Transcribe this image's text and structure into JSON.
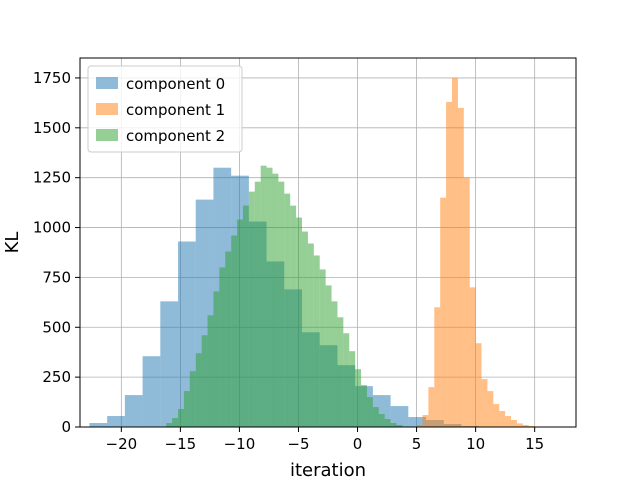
{
  "chart_data": {
    "type": "histogram",
    "title": "",
    "xlabel": "iteration",
    "ylabel": "KL",
    "xlim": [
      -23.5,
      18.5
    ],
    "ylim": [
      0,
      1850
    ],
    "xticks": [
      -20,
      -15,
      -10,
      -5,
      0,
      5,
      10,
      15
    ],
    "yticks": [
      0,
      250,
      500,
      750,
      1000,
      1250,
      1500,
      1750
    ],
    "grid": true,
    "legend_position": "top-left",
    "series": [
      {
        "name": "component 0",
        "color": "#1f77b4",
        "opacity": 0.5,
        "bin_start": -22.7,
        "bin_width": 1.5,
        "counts": [
          20,
          55,
          160,
          355,
          630,
          930,
          1140,
          1300,
          1260,
          1030,
          830,
          690,
          475,
          410,
          310,
          205,
          160,
          105,
          50,
          35,
          15,
          5
        ]
      },
      {
        "name": "component 1",
        "color": "#ff7f0e",
        "opacity": 0.5,
        "bin_start": 5.0,
        "bin_width": 0.5,
        "counts": [
          10,
          60,
          200,
          600,
          1150,
          1630,
          1750,
          1600,
          1250,
          700,
          420,
          240,
          180,
          115,
          80,
          55,
          35,
          18,
          10,
          5
        ]
      },
      {
        "name": "component 2",
        "color": "#2ca02c",
        "opacity": 0.5,
        "bin_start": -16.2,
        "bin_width": 0.5,
        "counts": [
          20,
          45,
          90,
          180,
          280,
          370,
          460,
          560,
          680,
          800,
          880,
          960,
          1040,
          1110,
          1180,
          1230,
          1310,
          1300,
          1270,
          1230,
          1170,
          1110,
          1050,
          980,
          920,
          860,
          790,
          710,
          630,
          550,
          470,
          380,
          290,
          210,
          150,
          100,
          65,
          40,
          20,
          10
        ]
      }
    ]
  }
}
